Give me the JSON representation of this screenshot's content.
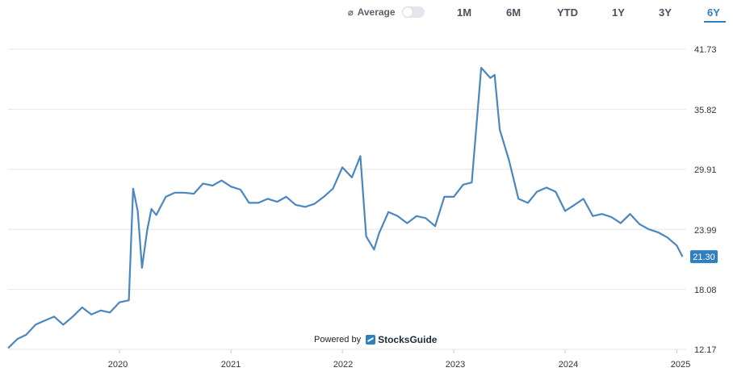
{
  "toolbar": {
    "average_glyph": "⌀",
    "average_label": "Average",
    "ranges": [
      "1M",
      "6M",
      "YTD",
      "1Y",
      "3Y",
      "6Y"
    ],
    "active_range": "6Y"
  },
  "footer": {
    "powered_by": "Powered by",
    "brand": "StocksGuide"
  },
  "colors": {
    "line": "#4a87c2",
    "accent": "#2f7fc1",
    "grid": "#e6e6e6"
  },
  "chart_data": {
    "type": "line",
    "title": "",
    "xlabel": "",
    "ylabel": "",
    "x_ticks": [
      "2020",
      "2021",
      "2022",
      "2023",
      "2024",
      "2025"
    ],
    "y_ticks": [
      41.73,
      35.82,
      29.91,
      23.99,
      18.08,
      12.17
    ],
    "ylim": [
      12.17,
      41.73
    ],
    "xlim": [
      "2019-01-01",
      "2025-02-01"
    ],
    "grid": true,
    "last_value": "21.30",
    "series": [
      {
        "x": [
          "2019-01-01",
          "2019-02-01",
          "2019-03-01",
          "2019-04-01",
          "2019-05-01",
          "2019-06-01",
          "2019-07-01",
          "2019-08-01",
          "2019-09-01",
          "2019-10-01",
          "2019-11-01",
          "2019-12-01",
          "2020-01-01",
          "2020-02-01",
          "2020-02-15",
          "2020-03-01",
          "2020-03-15",
          "2020-04-01",
          "2020-04-15",
          "2020-05-01",
          "2020-06-01",
          "2020-07-01",
          "2020-08-01",
          "2020-09-01",
          "2020-10-01",
          "2020-11-01",
          "2020-12-01",
          "2021-01-01",
          "2021-02-01",
          "2021-03-01",
          "2021-04-01",
          "2021-05-01",
          "2021-06-01",
          "2021-07-01",
          "2021-08-01",
          "2021-09-01",
          "2021-10-01",
          "2021-11-01",
          "2021-12-01",
          "2022-01-01",
          "2022-02-01",
          "2022-03-01",
          "2022-03-20",
          "2022-04-15",
          "2022-05-01",
          "2022-06-01",
          "2022-07-01",
          "2022-08-01",
          "2022-09-01",
          "2022-10-01",
          "2022-11-01",
          "2022-12-01",
          "2023-01-01",
          "2023-02-01",
          "2023-03-01",
          "2023-04-01",
          "2023-05-01",
          "2023-05-15",
          "2023-06-01",
          "2023-07-01",
          "2023-08-01",
          "2023-09-01",
          "2023-10-01",
          "2023-11-01",
          "2023-12-01",
          "2024-01-01",
          "2024-02-01",
          "2024-03-01",
          "2024-04-01",
          "2024-05-01",
          "2024-06-01",
          "2024-07-01",
          "2024-08-01",
          "2024-09-01",
          "2024-10-01",
          "2024-11-01",
          "2024-12-01",
          "2025-01-01",
          "2025-01-20"
        ],
        "y": [
          12.3,
          13.2,
          13.6,
          14.6,
          15.0,
          15.4,
          14.6,
          15.4,
          16.3,
          15.6,
          16.0,
          15.8,
          16.8,
          17.0,
          28.0,
          25.8,
          20.2,
          23.9,
          26.0,
          25.4,
          27.2,
          27.6,
          27.6,
          27.5,
          28.5,
          28.3,
          28.8,
          28.2,
          27.9,
          26.6,
          26.6,
          27.0,
          26.7,
          27.2,
          26.4,
          26.2,
          26.5,
          27.2,
          28.0,
          30.1,
          29.1,
          31.2,
          23.3,
          22.0,
          23.6,
          25.7,
          25.3,
          24.6,
          25.3,
          25.1,
          24.3,
          27.2,
          27.2,
          28.4,
          28.6,
          39.9,
          38.9,
          39.2,
          33.8,
          30.8,
          27.0,
          26.6,
          27.7,
          28.1,
          27.7,
          25.8,
          26.4,
          27.0,
          25.3,
          25.5,
          25.2,
          24.6,
          25.5,
          24.5,
          24.0,
          23.7,
          23.2,
          22.4,
          21.3
        ]
      }
    ]
  }
}
